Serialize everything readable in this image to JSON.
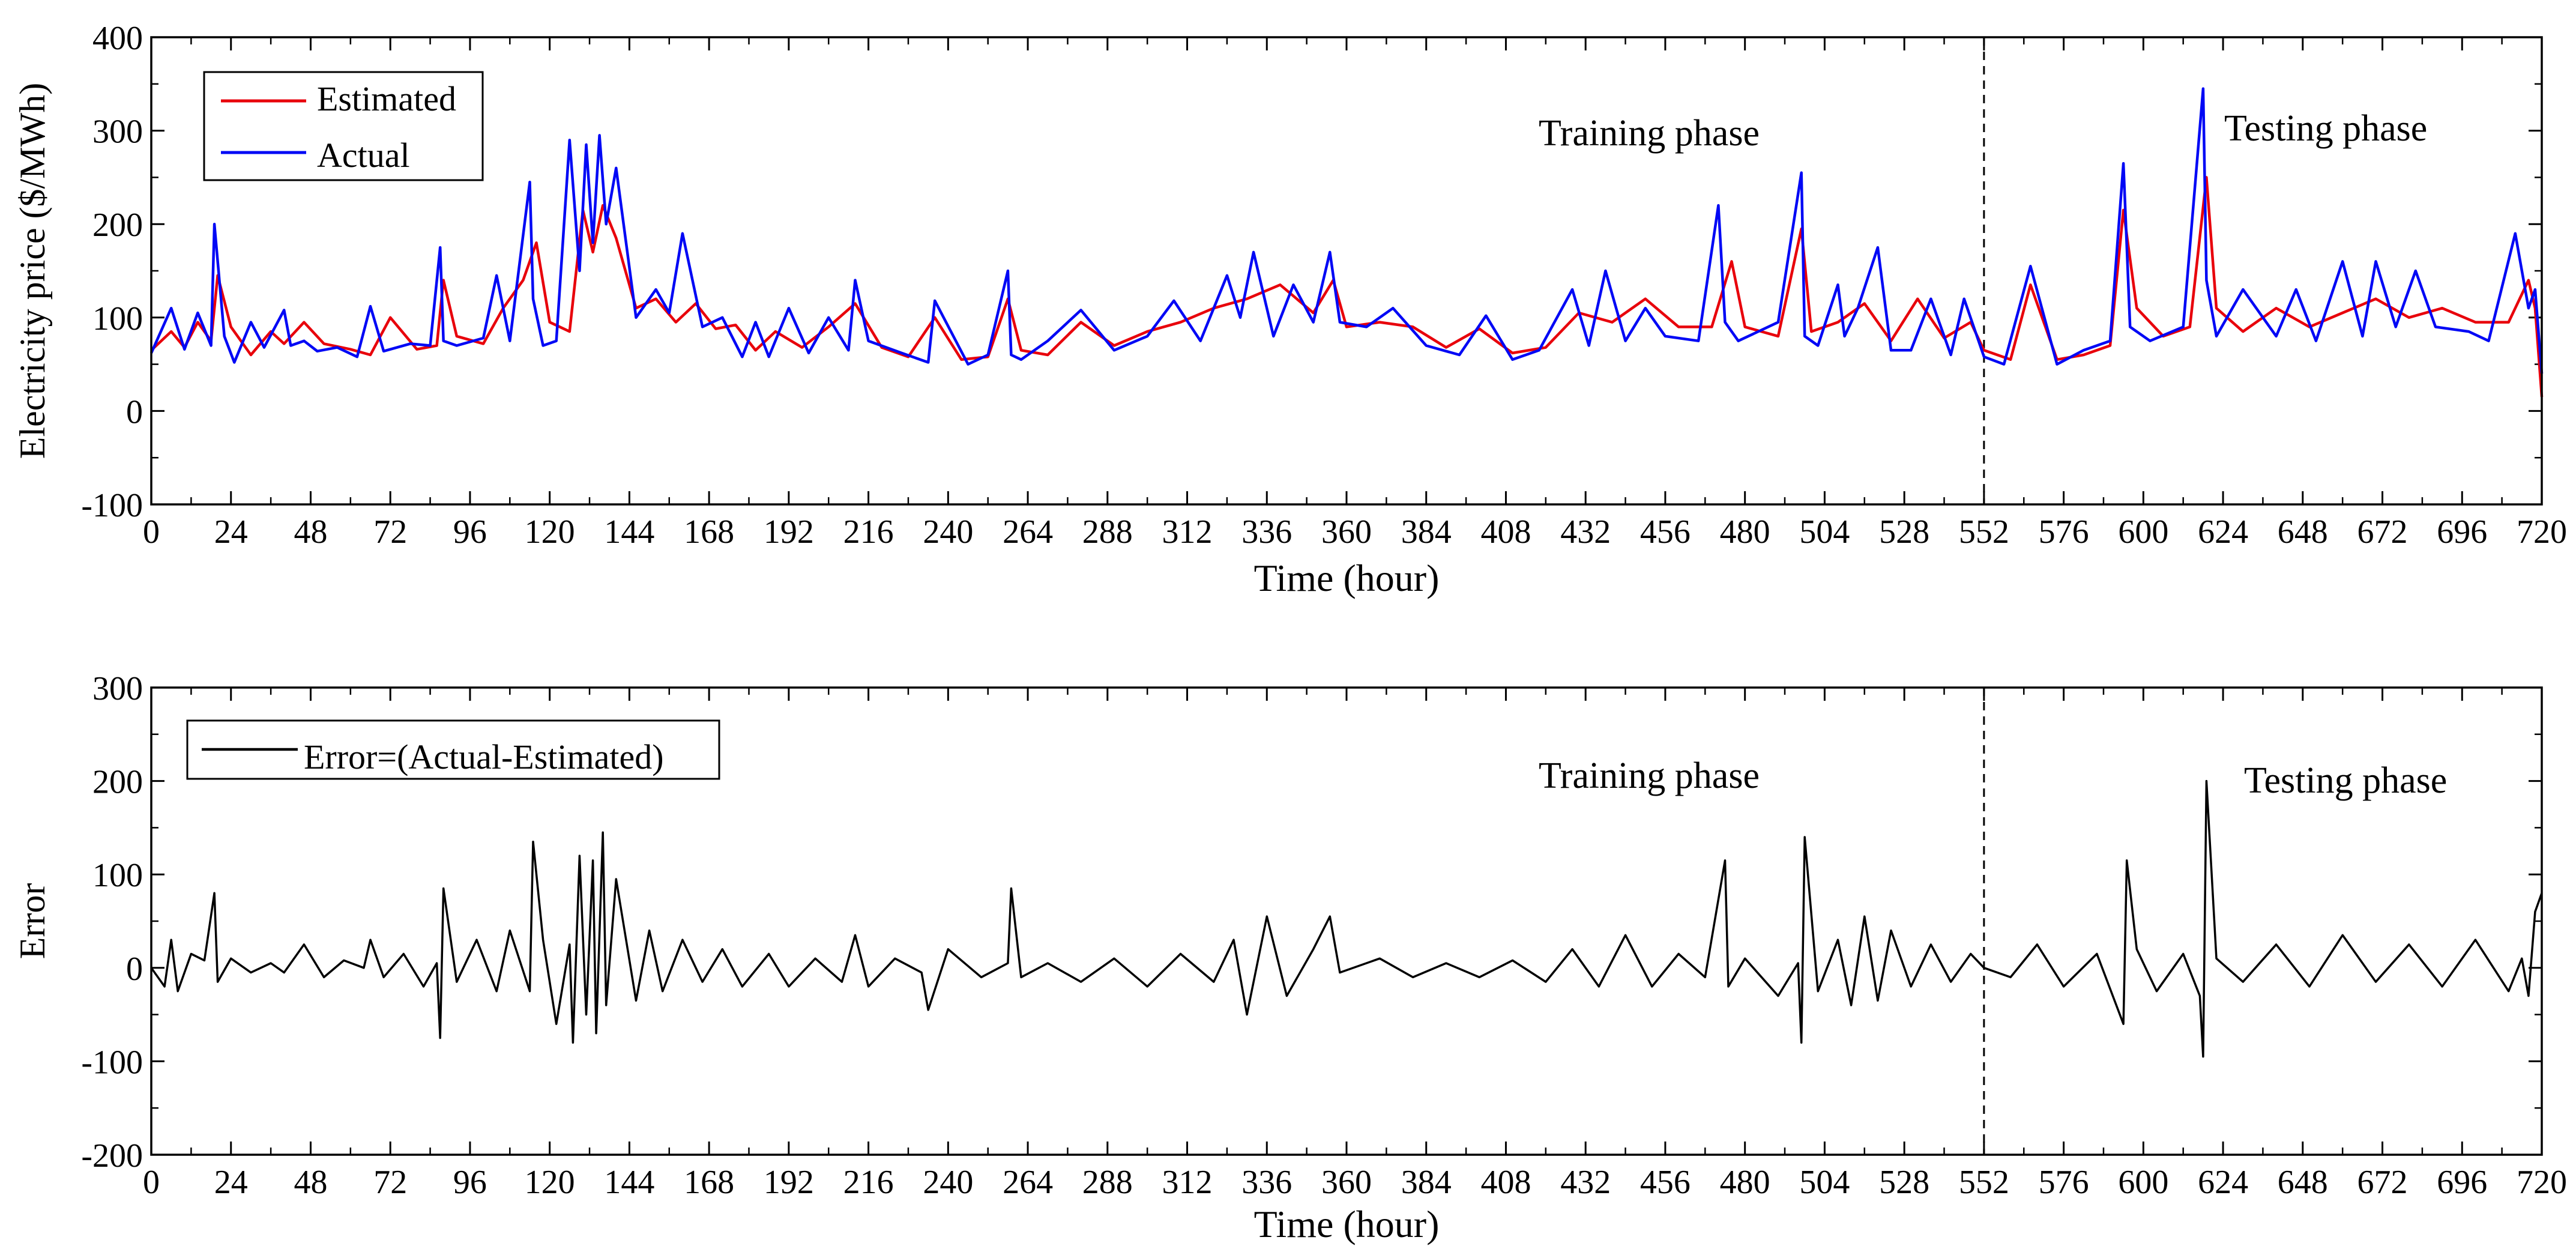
{
  "colors": {
    "estimated": "#e8000b",
    "actual": "#0008f5",
    "error": "#000000",
    "axis": "#000000",
    "background": "#ffffff"
  },
  "chart_data": [
    {
      "type": "line",
      "xlabel": "Time (hour)",
      "ylabel": "Electricity price ($/MWh)",
      "xlim": [
        0,
        720
      ],
      "ylim": [
        -100,
        400
      ],
      "xticks": [
        "0",
        "24",
        "48",
        "72",
        "96",
        "120",
        "144",
        "168",
        "192",
        "216",
        "240",
        "264",
        "288",
        "312",
        "336",
        "360",
        "384",
        "408",
        "432",
        "456",
        "480",
        "504",
        "528",
        "552",
        "576",
        "600",
        "624",
        "648",
        "672",
        "696",
        "720"
      ],
      "yticks": [
        "-100",
        "0",
        "100",
        "200",
        "300",
        "400"
      ],
      "legend": {
        "placement": "top-left",
        "entries": [
          "Estimated",
          "Actual"
        ]
      },
      "annotations": [
        "Training phase",
        "Testing phase"
      ],
      "split_x": 552,
      "series": [
        {
          "name": "Actual",
          "x": [
            0,
            6,
            10,
            14,
            18,
            19,
            22,
            25,
            30,
            34,
            40,
            42,
            46,
            50,
            56,
            62,
            66,
            70,
            78,
            84,
            87,
            88,
            92,
            100,
            104,
            108,
            114,
            115,
            118,
            122,
            126,
            129,
            131,
            133,
            135,
            137,
            140,
            146,
            152,
            156,
            160,
            166,
            172,
            178,
            182,
            186,
            192,
            198,
            204,
            210,
            212,
            216,
            226,
            234,
            236,
            246,
            252,
            258,
            259,
            262,
            270,
            280,
            290,
            300,
            308,
            316,
            324,
            328,
            332,
            338,
            344,
            350,
            355,
            358,
            366,
            374,
            384,
            394,
            402,
            410,
            418,
            428,
            433,
            438,
            444,
            450,
            456,
            466,
            472,
            474,
            478,
            490,
            497,
            498,
            502,
            508,
            510,
            514,
            520,
            524,
            530,
            536,
            542,
            546,
            552,
            558,
            566,
            574,
            582,
            590,
            594,
            596,
            602,
            612,
            618,
            619,
            622,
            630,
            640,
            646,
            652,
            660,
            666,
            670,
            676,
            682,
            688,
            698,
            704,
            712,
            716,
            718,
            720
          ],
          "y": [
            62,
            110,
            66,
            105,
            70,
            200,
            80,
            52,
            95,
            68,
            108,
            70,
            75,
            64,
            68,
            58,
            112,
            64,
            72,
            70,
            175,
            75,
            70,
            78,
            145,
            75,
            245,
            120,
            70,
            75,
            290,
            150,
            285,
            180,
            295,
            200,
            260,
            100,
            130,
            105,
            190,
            90,
            100,
            58,
            95,
            58,
            110,
            62,
            100,
            65,
            140,
            75,
            62,
            52,
            118,
            50,
            60,
            150,
            60,
            55,
            75,
            108,
            65,
            80,
            118,
            75,
            145,
            100,
            170,
            80,
            135,
            95,
            170,
            95,
            90,
            110,
            70,
            60,
            102,
            55,
            65,
            130,
            70,
            150,
            75,
            110,
            80,
            75,
            220,
            95,
            75,
            95,
            255,
            80,
            70,
            135,
            80,
            110,
            175,
            65,
            65,
            120,
            60,
            120,
            58,
            50,
            155,
            50,
            65,
            75,
            265,
            90,
            75,
            90,
            345,
            140,
            80,
            130,
            80,
            130,
            75,
            160,
            80,
            160,
            90,
            150,
            90,
            85,
            75,
            190,
            110,
            130,
            40
          ]
        },
        {
          "name": "Estimated",
          "x": [
            0,
            6,
            10,
            14,
            18,
            20,
            24,
            30,
            36,
            40,
            46,
            52,
            60,
            66,
            72,
            80,
            86,
            88,
            92,
            100,
            106,
            112,
            116,
            120,
            126,
            130,
            133,
            136,
            140,
            146,
            152,
            158,
            164,
            170,
            176,
            182,
            188,
            196,
            204,
            212,
            220,
            228,
            236,
            244,
            252,
            258,
            262,
            270,
            280,
            290,
            300,
            310,
            320,
            330,
            340,
            350,
            356,
            360,
            370,
            380,
            390,
            400,
            410,
            420,
            430,
            440,
            450,
            460,
            470,
            476,
            480,
            490,
            497,
            500,
            508,
            516,
            524,
            532,
            540,
            548,
            552,
            560,
            566,
            574,
            582,
            590,
            594,
            598,
            606,
            614,
            619,
            622,
            630,
            640,
            650,
            660,
            670,
            680,
            690,
            700,
            710,
            716,
            718,
            720
          ],
          "y": [
            65,
            85,
            68,
            95,
            75,
            145,
            90,
            60,
            85,
            72,
            95,
            72,
            66,
            60,
            100,
            66,
            70,
            140,
            80,
            72,
            110,
            140,
            180,
            95,
            85,
            215,
            170,
            220,
            185,
            110,
            120,
            95,
            115,
            88,
            92,
            65,
            85,
            68,
            90,
            115,
            68,
            58,
            100,
            55,
            58,
            120,
            65,
            60,
            95,
            70,
            85,
            95,
            110,
            120,
            135,
            105,
            140,
            90,
            95,
            90,
            68,
            88,
            62,
            68,
            105,
            95,
            120,
            90,
            90,
            160,
            90,
            80,
            195,
            85,
            95,
            115,
            75,
            120,
            78,
            95,
            65,
            55,
            135,
            55,
            60,
            70,
            215,
            110,
            80,
            90,
            250,
            110,
            85,
            110,
            90,
            105,
            120,
            100,
            110,
            95,
            95,
            140,
            110,
            15
          ]
        }
      ]
    },
    {
      "type": "line",
      "xlabel": "Time (hour)",
      "ylabel": "Error",
      "xlim": [
        0,
        720
      ],
      "ylim": [
        -200,
        300
      ],
      "xticks": [
        "0",
        "24",
        "48",
        "72",
        "96",
        "120",
        "144",
        "168",
        "192",
        "216",
        "240",
        "264",
        "288",
        "312",
        "336",
        "360",
        "384",
        "408",
        "432",
        "456",
        "480",
        "504",
        "528",
        "552",
        "576",
        "600",
        "624",
        "648",
        "672",
        "696",
        "720"
      ],
      "yticks": [
        "-200",
        "-100",
        "0",
        "100",
        "200",
        "300"
      ],
      "legend": {
        "placement": "top-left",
        "entries": [
          "Error=(Actual-Estimated)"
        ]
      },
      "annotations": [
        "Training phase",
        "Testing phase"
      ],
      "split_x": 552,
      "series": [
        {
          "name": "Error=(Actual-Estimated)",
          "x": [
            0,
            4,
            6,
            8,
            12,
            16,
            19,
            20,
            24,
            30,
            36,
            40,
            46,
            52,
            58,
            64,
            66,
            70,
            76,
            82,
            86,
            87,
            88,
            92,
            98,
            104,
            108,
            114,
            115,
            118,
            122,
            126,
            127,
            129,
            131,
            133,
            134,
            136,
            137,
            140,
            146,
            150,
            154,
            160,
            166,
            172,
            178,
            186,
            192,
            200,
            208,
            212,
            216,
            224,
            232,
            234,
            240,
            250,
            258,
            259,
            262,
            270,
            280,
            290,
            300,
            310,
            320,
            326,
            330,
            336,
            342,
            350,
            355,
            358,
            370,
            380,
            390,
            400,
            410,
            420,
            428,
            436,
            444,
            452,
            460,
            468,
            474,
            475,
            480,
            490,
            496,
            497,
            498,
            502,
            508,
            512,
            516,
            520,
            524,
            530,
            536,
            542,
            548,
            552,
            560,
            568,
            576,
            586,
            594,
            595,
            598,
            604,
            612,
            617,
            618,
            619,
            622,
            630,
            640,
            650,
            660,
            670,
            680,
            690,
            700,
            710,
            714,
            716,
            718,
            720
          ],
          "y": [
            0,
            -20,
            30,
            -25,
            15,
            8,
            80,
            -15,
            10,
            -5,
            5,
            -5,
            25,
            -10,
            8,
            0,
            30,
            -10,
            15,
            -20,
            5,
            -75,
            85,
            -15,
            30,
            -25,
            40,
            -25,
            135,
            30,
            -60,
            25,
            -80,
            120,
            -50,
            115,
            -70,
            145,
            -40,
            95,
            -35,
            40,
            -25,
            30,
            -15,
            20,
            -20,
            15,
            -20,
            10,
            -15,
            35,
            -20,
            10,
            -5,
            -45,
            20,
            -10,
            5,
            85,
            -10,
            5,
            -15,
            10,
            -20,
            15,
            -15,
            30,
            -50,
            55,
            -30,
            20,
            55,
            -5,
            10,
            -10,
            5,
            -10,
            8,
            -15,
            20,
            -20,
            35,
            -20,
            15,
            -10,
            115,
            -20,
            10,
            -30,
            5,
            -80,
            140,
            -25,
            30,
            -40,
            55,
            -35,
            40,
            -20,
            25,
            -15,
            15,
            0,
            -10,
            25,
            -20,
            15,
            -60,
            115,
            20,
            -25,
            15,
            -30,
            -95,
            200,
            10,
            -15,
            25,
            -20,
            35,
            -15,
            25,
            -20,
            30,
            -25,
            10,
            -30,
            60,
            80
          ]
        }
      ]
    }
  ]
}
